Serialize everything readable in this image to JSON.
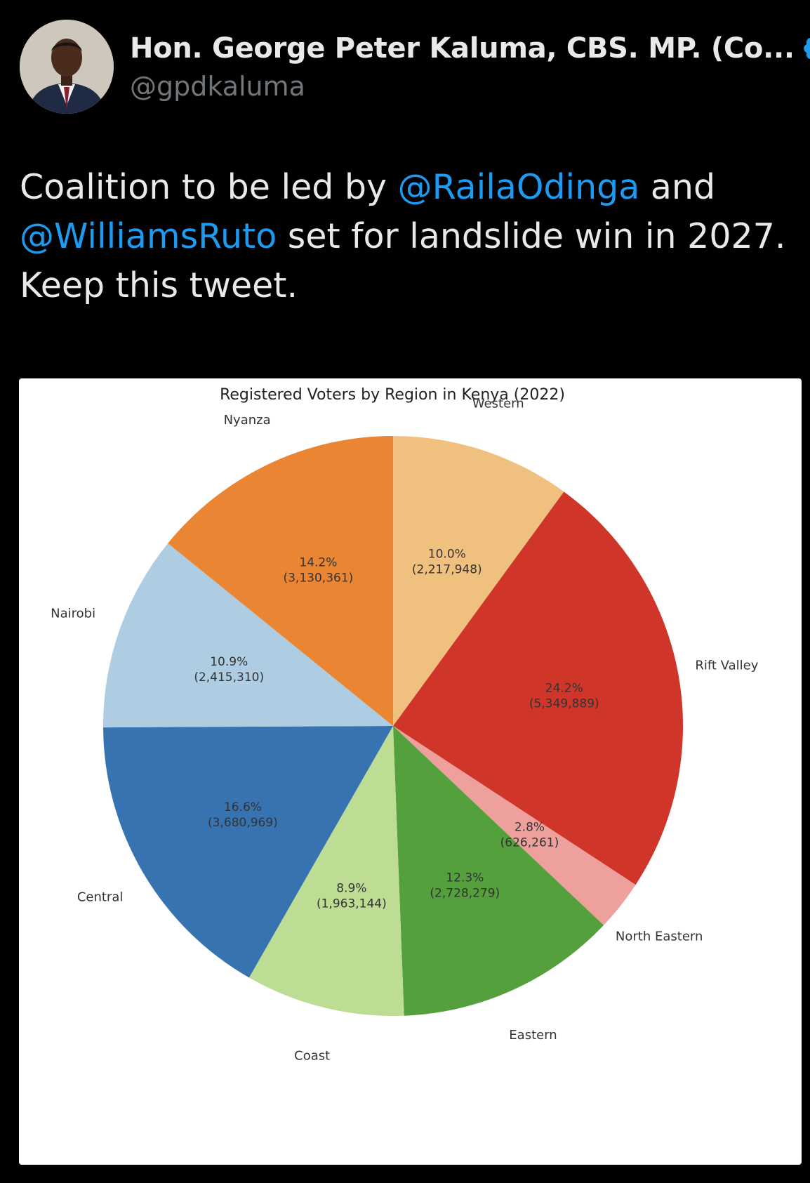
{
  "tweet": {
    "author_name": "Hon. George Peter Kaluma, CBS. MP. (Co...",
    "handle": "@gpdkaluma",
    "text_part1": "Coalition to be led by ",
    "mention1": "@RailaOdinga",
    "text_part2": " and",
    "mention2": "@WilliamsRuto",
    "text_part3": " set for landslide win in 2027.",
    "text_part4": "Keep this tweet.",
    "mention_color": "#1d9bf0"
  },
  "chart_data": {
    "type": "pie",
    "title": "Registered Voters by Region in Kenya (2022)",
    "start_angle_deg": 90,
    "direction": "clockwise",
    "slices": [
      {
        "label": "Western",
        "value": 2217948,
        "pct_label": "10.0%",
        "value_label": "(2,217,948)",
        "color": "#f0c07e"
      },
      {
        "label": "Rift Valley",
        "value": 5349889,
        "pct_label": "24.2%",
        "value_label": "(5,349,889)",
        "color": "#d0352a"
      },
      {
        "label": "North Eastern",
        "value": 626261,
        "pct_label": "2.8%",
        "value_label": "(626,261)",
        "color": "#eea09c"
      },
      {
        "label": "Eastern",
        "value": 2728279,
        "pct_label": "12.3%",
        "value_label": "(2,728,279)",
        "color": "#54a03c"
      },
      {
        "label": "Coast",
        "value": 1963144,
        "pct_label": "8.9%",
        "value_label": "(1,963,144)",
        "color": "#bcdd93"
      },
      {
        "label": "Central",
        "value": 3680969,
        "pct_label": "16.6%",
        "value_label": "(3,680,969)",
        "color": "#3873b1"
      },
      {
        "label": "Nairobi",
        "value": 2415310,
        "pct_label": "10.9%",
        "value_label": "(2,415,310)",
        "color": "#aecde3"
      },
      {
        "label": "Nyanza",
        "value": 3130361,
        "pct_label": "14.2%",
        "value_label": "(3,130,361)",
        "color": "#ea8533"
      }
    ]
  }
}
